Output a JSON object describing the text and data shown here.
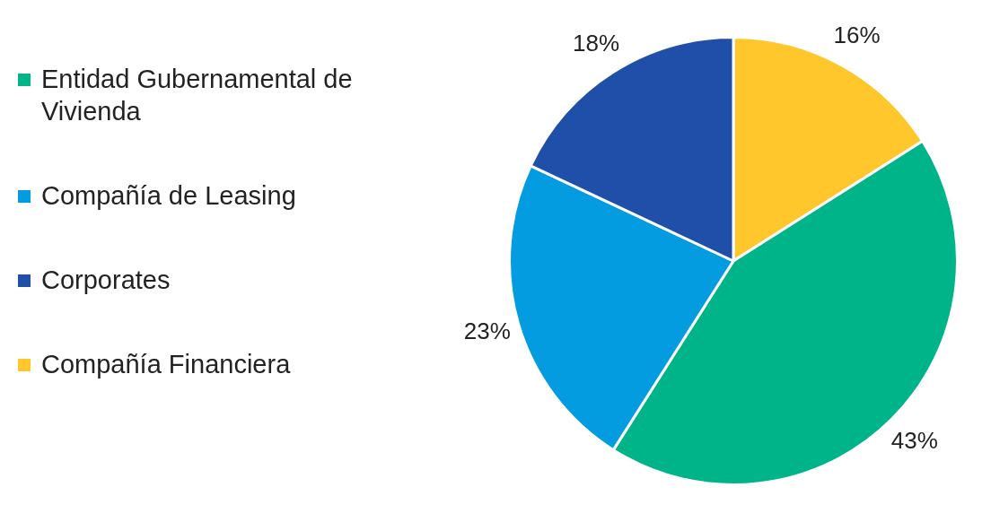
{
  "chart_data": {
    "type": "pie",
    "categories": [
      "Entidad Gubernamental de Vivienda",
      "Compañía de Leasing",
      "Corporates",
      "Compañía Financiera"
    ],
    "values": [
      43,
      23,
      18,
      16
    ],
    "colors": [
      "#00b48a",
      "#049ce0",
      "#1f4fa8",
      "#ffc72c"
    ],
    "value_labels": [
      "43%",
      "23%",
      "18%",
      "16%"
    ],
    "legend": "left"
  }
}
